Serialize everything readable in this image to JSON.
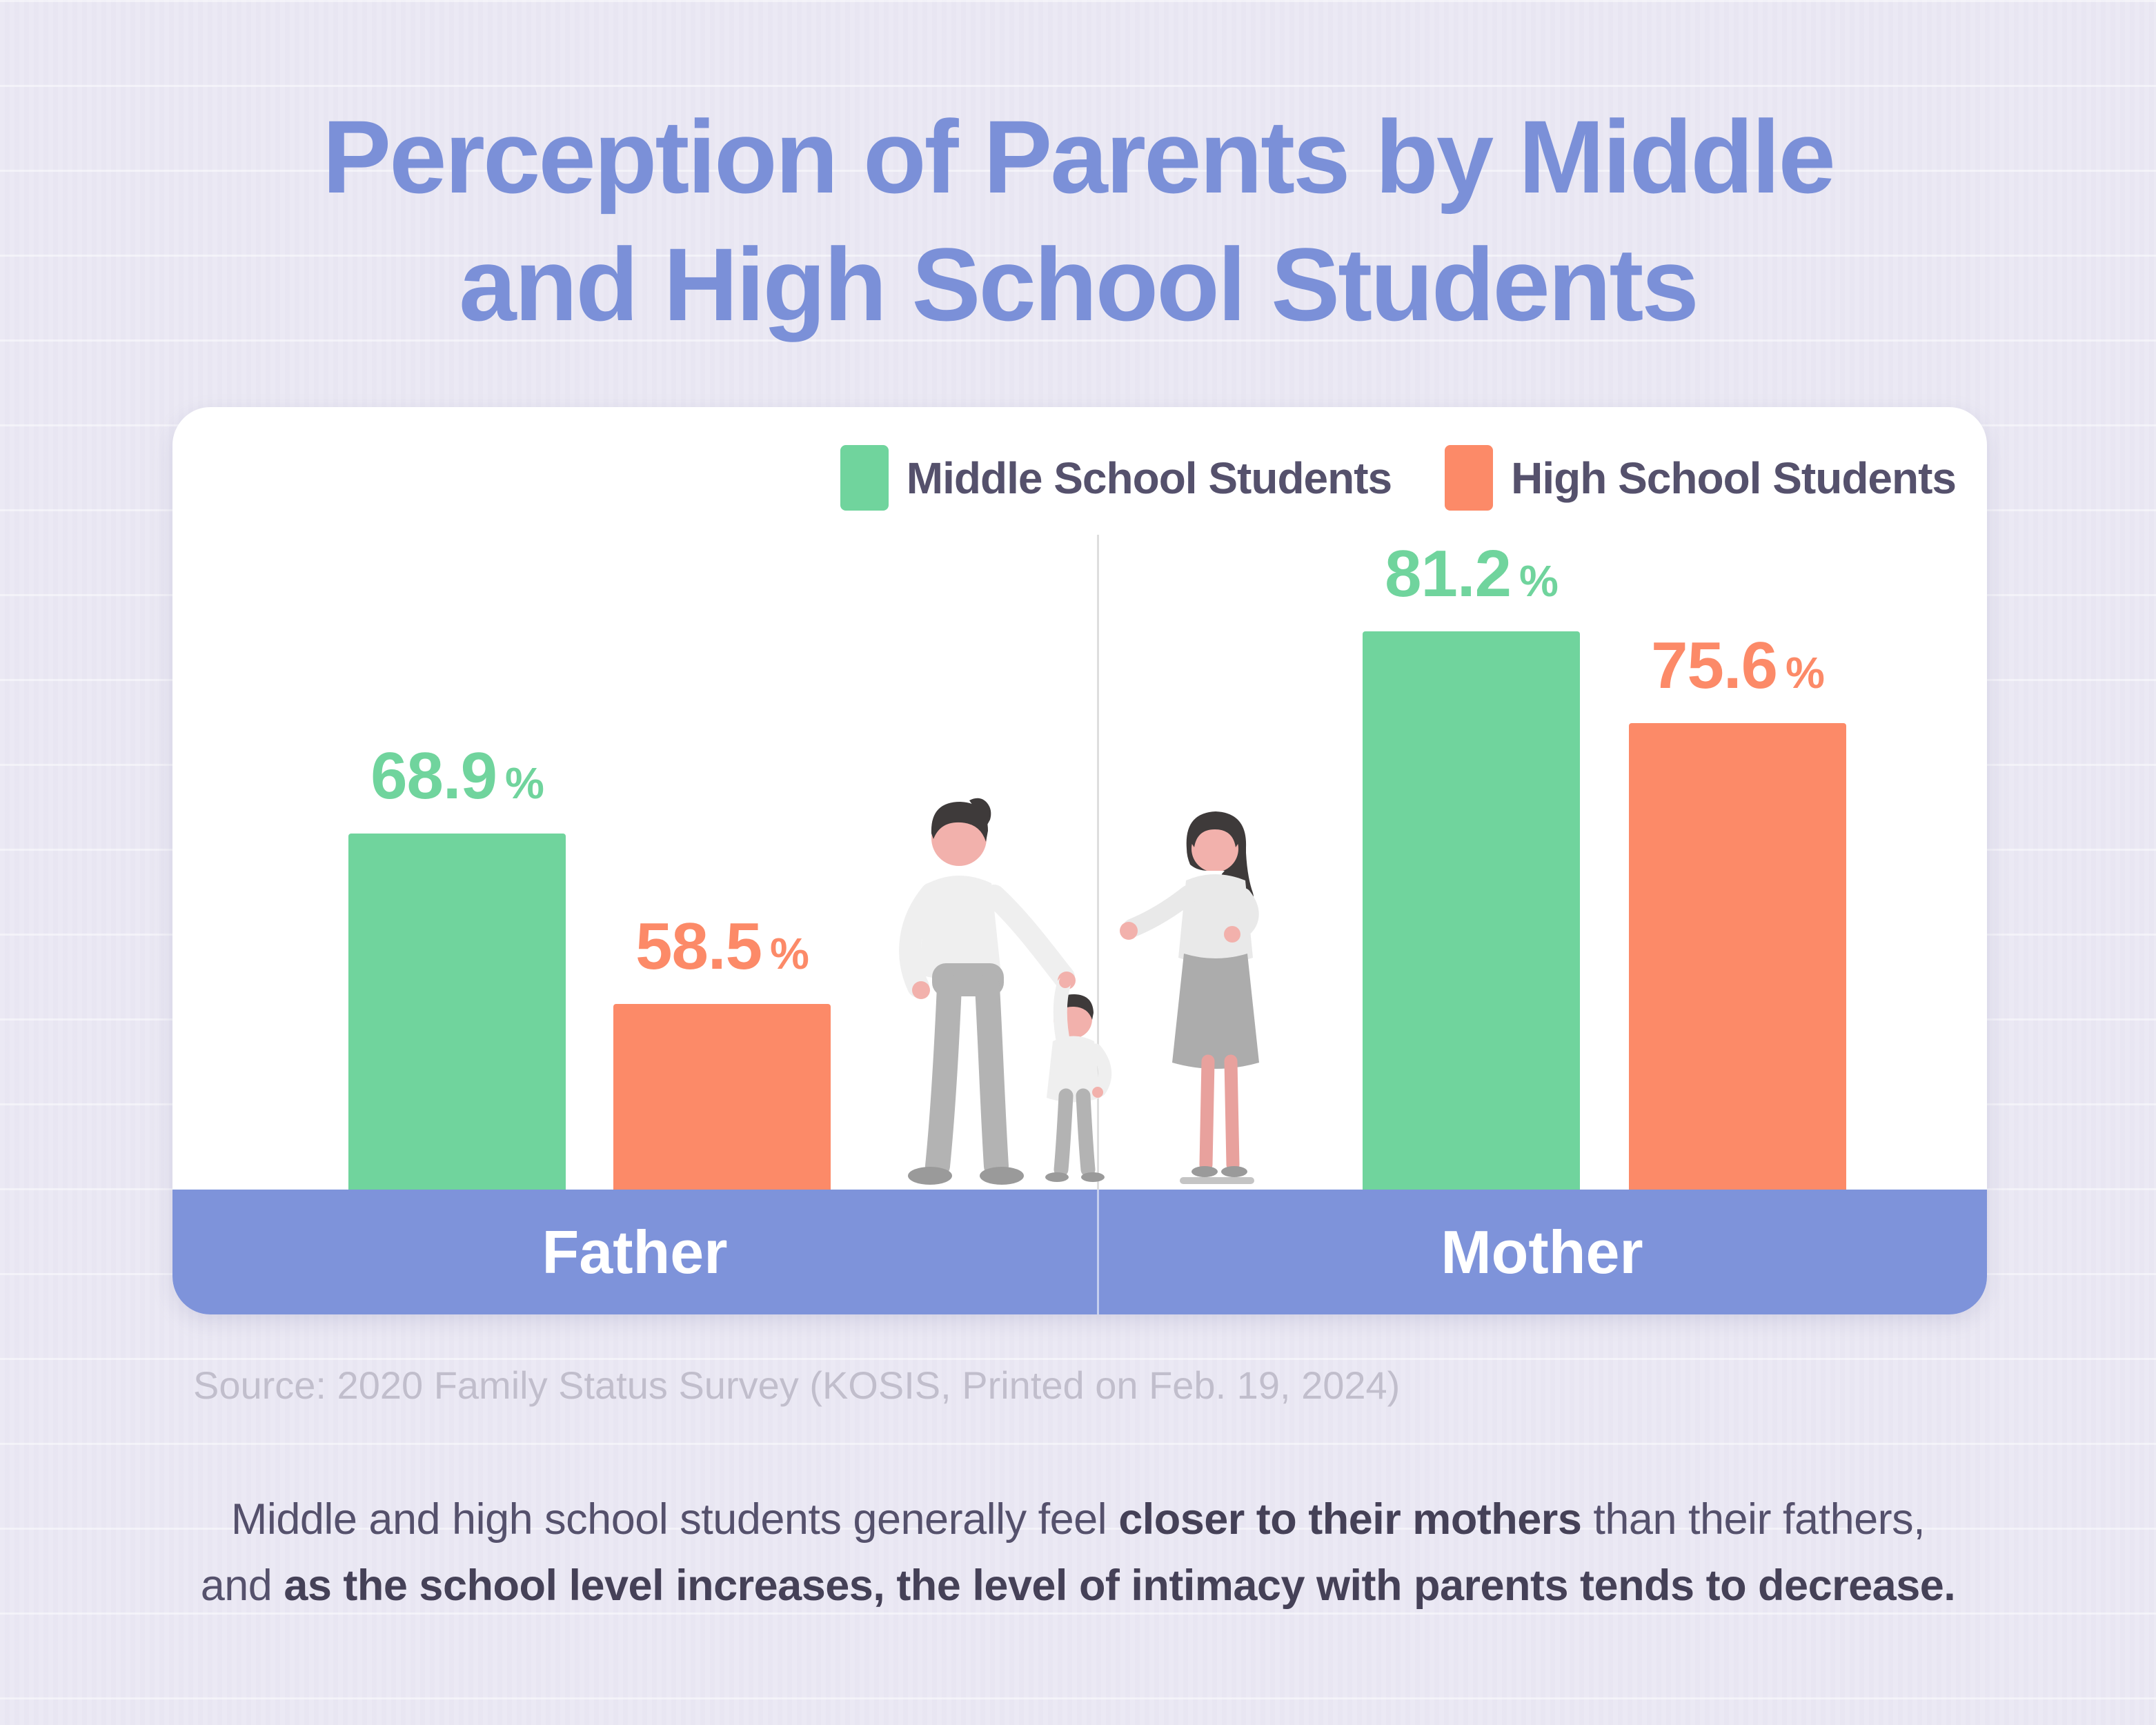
{
  "page": {
    "title_line1": "Perception of Parents by Middle",
    "title_line2": "and High School Students",
    "source": "Source: 2020 Family Status Survey (KOSIS, Printed on Feb. 19, 2024)",
    "caption": {
      "l1_normal1": "Middle and high school students generally feel ",
      "l1_bold": "closer to their mothers",
      "l1_normal2": " than their fathers,",
      "l2_normal": "and ",
      "l2_bold": "as the school level increases, the level of intimacy with parents tends to decrease."
    }
  },
  "legend": {
    "items": [
      {
        "label": "Middle School Students",
        "color": "#70D49D"
      },
      {
        "label": "High School Students",
        "color": "#FC8A68"
      }
    ]
  },
  "chart_data": {
    "type": "bar",
    "categories": [
      "Father",
      "Mother"
    ],
    "series": [
      {
        "name": "Middle School Students",
        "color": "#70D49D",
        "values": [
          68.9,
          81.2
        ]
      },
      {
        "name": "High School Students",
        "color": "#FC8A68",
        "values": [
          58.5,
          75.6
        ]
      }
    ],
    "unit": "%",
    "ylim": [
      47.2,
      85
    ],
    "grid": false,
    "legend_position": "top",
    "title": "Perception of Parents by Middle and High School Students"
  },
  "colors": {
    "background": "#EAE8F3",
    "title_blue": "#7B90D8",
    "banner_blue": "#7E93DA",
    "green": "#70D49D",
    "orange": "#FC8A68",
    "legend_text": "#55516C",
    "source_gray": "#C1BECC"
  }
}
